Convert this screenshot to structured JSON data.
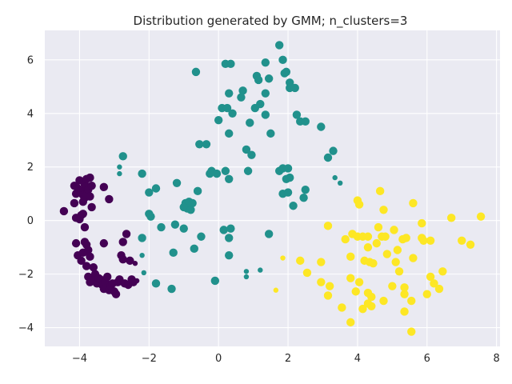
{
  "chart_data": {
    "type": "scatter",
    "title": "Distribution generated by GMM; n_clusters=3",
    "xlabel": "",
    "ylabel": "",
    "xlim": [
      -5.0,
      8.1
    ],
    "ylim": [
      -4.7,
      7.1
    ],
    "x_ticks": [
      -4,
      -2,
      0,
      2,
      4,
      6,
      8
    ],
    "y_ticks": [
      -4,
      -2,
      0,
      2,
      4,
      6
    ],
    "x_tick_labels": [
      "−4",
      "−2",
      "0",
      "2",
      "4",
      "6",
      "8"
    ],
    "y_tick_labels": [
      "−4",
      "−2",
      "0",
      "2",
      "4",
      "6"
    ],
    "grid": true,
    "background": "#eaeaf2",
    "grid_color": "#ffffff",
    "series": [
      {
        "color": "#440154",
        "points": [
          [
            -4.45,
            0.35,
            1
          ],
          [
            -4.15,
            1.3,
            1
          ],
          [
            -4.1,
            1.0,
            1
          ],
          [
            -4.05,
            1.2,
            1
          ],
          [
            -4.0,
            1.5,
            1
          ],
          [
            -3.95,
            1.1,
            1
          ],
          [
            -3.9,
            0.95,
            1
          ],
          [
            -3.85,
            1.35,
            1
          ],
          [
            -3.82,
            1.25,
            1
          ],
          [
            -3.8,
            1.55,
            1
          ],
          [
            -3.78,
            1.0,
            1
          ],
          [
            -3.75,
            1.15,
            1
          ],
          [
            -3.7,
            1.6,
            1
          ],
          [
            -3.65,
            1.3,
            1
          ],
          [
            -3.85,
            0.85,
            1
          ],
          [
            -3.9,
            0.7,
            1
          ],
          [
            -3.7,
            0.9,
            1
          ],
          [
            -3.65,
            0.5,
            1
          ],
          [
            -4.15,
            0.65,
            1
          ],
          [
            -4.1,
            0.1,
            1
          ],
          [
            -4.0,
            0.05,
            1
          ],
          [
            -3.95,
            0.2,
            1
          ],
          [
            -3.9,
            0.25,
            1
          ],
          [
            -3.85,
            -0.25,
            1
          ],
          [
            -3.3,
            1.25,
            1
          ],
          [
            -3.15,
            0.8,
            1
          ],
          [
            -4.1,
            -0.85,
            1
          ],
          [
            -4.05,
            -1.3,
            1
          ],
          [
            -3.95,
            -1.5,
            1
          ],
          [
            -3.9,
            -1.2,
            1
          ],
          [
            -3.85,
            -0.8,
            1
          ],
          [
            -3.8,
            -0.9,
            1
          ],
          [
            -3.75,
            -1.1,
            1
          ],
          [
            -3.7,
            -1.35,
            1
          ],
          [
            -3.8,
            -1.7,
            1
          ],
          [
            -3.75,
            -2.1,
            1
          ],
          [
            -3.7,
            -2.3,
            1
          ],
          [
            -3.65,
            -2.25,
            1
          ],
          [
            -3.6,
            -1.75,
            1
          ],
          [
            -3.55,
            -2.0,
            1
          ],
          [
            -3.5,
            -2.35,
            1
          ],
          [
            -3.45,
            -2.15,
            1
          ],
          [
            -3.4,
            -2.2,
            1
          ],
          [
            -3.35,
            -2.4,
            1
          ],
          [
            -3.3,
            -2.55,
            1
          ],
          [
            -3.25,
            -2.3,
            1
          ],
          [
            -3.2,
            -2.1,
            1
          ],
          [
            -3.15,
            -2.6,
            1
          ],
          [
            -3.1,
            -2.45,
            1
          ],
          [
            -3.05,
            -2.35,
            1
          ],
          [
            -3.0,
            -2.65,
            1
          ],
          [
            -2.95,
            -2.75,
            1
          ],
          [
            -2.9,
            -2.3,
            1
          ],
          [
            -2.85,
            -2.2,
            1
          ],
          [
            -2.8,
            -1.3,
            1
          ],
          [
            -2.75,
            -1.45,
            1
          ],
          [
            -2.7,
            -2.35,
            1
          ],
          [
            -2.6,
            -2.4,
            1
          ],
          [
            -2.55,
            -1.5,
            1
          ],
          [
            -2.5,
            -2.2,
            1
          ],
          [
            -2.45,
            -2.3,
            1
          ],
          [
            -3.3,
            -0.85,
            1
          ],
          [
            -2.75,
            -0.8,
            1
          ],
          [
            -2.65,
            -0.5,
            1
          ],
          [
            -2.4,
            -1.6,
            0
          ],
          [
            -2.35,
            -2.25,
            0
          ]
        ]
      },
      {
        "color": "#21918c",
        "points": [
          [
            1.75,
            6.55,
            1
          ],
          [
            1.85,
            6.0,
            1
          ],
          [
            1.9,
            5.5,
            1
          ],
          [
            1.95,
            5.55,
            1
          ],
          [
            2.05,
            5.15,
            1
          ],
          [
            2.05,
            4.95,
            1
          ],
          [
            2.2,
            4.95,
            1
          ],
          [
            0.2,
            5.85,
            1
          ],
          [
            0.35,
            5.85,
            1
          ],
          [
            1.35,
            5.9,
            1
          ],
          [
            1.1,
            5.4,
            1
          ],
          [
            1.15,
            5.25,
            1
          ],
          [
            1.45,
            5.3,
            1
          ],
          [
            -0.65,
            5.55,
            1
          ],
          [
            0.7,
            4.85,
            1
          ],
          [
            0.3,
            4.75,
            1
          ],
          [
            0.65,
            4.6,
            1
          ],
          [
            1.35,
            4.75,
            1
          ],
          [
            0.1,
            4.2,
            1
          ],
          [
            0.25,
            4.2,
            1
          ],
          [
            1.05,
            4.2,
            1
          ],
          [
            1.2,
            4.35,
            1
          ],
          [
            0.0,
            3.75,
            1
          ],
          [
            0.4,
            4.0,
            1
          ],
          [
            0.9,
            3.65,
            1
          ],
          [
            1.35,
            3.95,
            1
          ],
          [
            2.25,
            3.95,
            1
          ],
          [
            2.35,
            3.7,
            1
          ],
          [
            2.5,
            3.7,
            1
          ],
          [
            2.95,
            3.5,
            1
          ],
          [
            1.5,
            3.25,
            1
          ],
          [
            0.3,
            3.25,
            1
          ],
          [
            -0.55,
            2.85,
            1
          ],
          [
            -0.35,
            2.85,
            1
          ],
          [
            0.8,
            2.65,
            1
          ],
          [
            0.95,
            2.45,
            1
          ],
          [
            3.15,
            2.35,
            1
          ],
          [
            3.3,
            2.6,
            1
          ],
          [
            -2.75,
            2.4,
            1
          ],
          [
            -2.85,
            2.0,
            0
          ],
          [
            -2.85,
            1.75,
            0
          ],
          [
            1.75,
            1.85,
            1
          ],
          [
            1.85,
            1.95,
            1
          ],
          [
            2.0,
            1.95,
            1
          ],
          [
            0.85,
            1.85,
            1
          ],
          [
            0.2,
            1.85,
            1
          ],
          [
            -0.2,
            1.85,
            1
          ],
          [
            -0.05,
            1.75,
            1
          ],
          [
            -0.25,
            1.75,
            1
          ],
          [
            -2.2,
            1.75,
            1
          ],
          [
            3.35,
            1.6,
            0
          ],
          [
            0.3,
            1.55,
            1
          ],
          [
            1.95,
            1.55,
            1
          ],
          [
            2.05,
            1.6,
            1
          ],
          [
            3.5,
            1.4,
            0
          ],
          [
            -1.2,
            1.4,
            1
          ],
          [
            -1.8,
            1.2,
            1
          ],
          [
            -2.0,
            1.05,
            1
          ],
          [
            -0.6,
            1.1,
            1
          ],
          [
            1.85,
            1.0,
            1
          ],
          [
            2.0,
            1.05,
            1
          ],
          [
            2.5,
            1.15,
            1
          ],
          [
            2.45,
            0.85,
            1
          ],
          [
            -0.95,
            0.65,
            1
          ],
          [
            -0.85,
            0.7,
            1
          ],
          [
            -0.75,
            0.65,
            1
          ],
          [
            -0.9,
            0.45,
            1
          ],
          [
            -1.0,
            0.5,
            1
          ],
          [
            -0.8,
            0.4,
            1
          ],
          [
            2.15,
            0.55,
            1
          ],
          [
            -2.0,
            0.25,
            1
          ],
          [
            -1.95,
            0.15,
            1
          ],
          [
            -1.65,
            -0.25,
            1
          ],
          [
            -1.25,
            -0.15,
            1
          ],
          [
            -1.0,
            -0.3,
            1
          ],
          [
            0.15,
            -0.35,
            1
          ],
          [
            0.35,
            -0.3,
            1
          ],
          [
            1.45,
            -0.5,
            1
          ],
          [
            -2.2,
            -0.65,
            1
          ],
          [
            -0.5,
            -0.6,
            1
          ],
          [
            0.3,
            -0.65,
            1
          ],
          [
            -0.7,
            -1.05,
            1
          ],
          [
            -1.3,
            -1.2,
            1
          ],
          [
            0.3,
            -1.3,
            1
          ],
          [
            -2.2,
            -1.3,
            0
          ],
          [
            1.2,
            -1.85,
            0
          ],
          [
            -2.15,
            -1.95,
            0
          ],
          [
            0.8,
            -1.9,
            0
          ],
          [
            0.8,
            -2.1,
            0
          ],
          [
            -0.1,
            -2.25,
            1
          ],
          [
            -1.8,
            -2.35,
            1
          ],
          [
            -1.35,
            -2.55,
            1
          ]
        ]
      },
      {
        "color": "#fde725",
        "points": [
          [
            4.65,
            1.1,
            1
          ],
          [
            5.6,
            0.65,
            1
          ],
          [
            4.0,
            0.75,
            1
          ],
          [
            4.05,
            0.6,
            1
          ],
          [
            4.75,
            0.4,
            1
          ],
          [
            6.7,
            0.1,
            1
          ],
          [
            7.55,
            0.15,
            1
          ],
          [
            5.85,
            -0.1,
            1
          ],
          [
            3.15,
            -0.2,
            1
          ],
          [
            4.6,
            -0.25,
            1
          ],
          [
            5.05,
            -0.35,
            1
          ],
          [
            3.85,
            -0.5,
            1
          ],
          [
            4.0,
            -0.6,
            1
          ],
          [
            4.15,
            -0.6,
            1
          ],
          [
            4.3,
            -0.6,
            1
          ],
          [
            4.7,
            -0.6,
            1
          ],
          [
            4.8,
            -0.6,
            1
          ],
          [
            3.65,
            -0.7,
            1
          ],
          [
            5.3,
            -0.7,
            1
          ],
          [
            5.4,
            -0.65,
            1
          ],
          [
            5.85,
            -0.65,
            1
          ],
          [
            5.9,
            -0.75,
            1
          ],
          [
            6.1,
            -0.75,
            1
          ],
          [
            7.0,
            -0.75,
            1
          ],
          [
            7.25,
            -0.9,
            1
          ],
          [
            4.3,
            -1.0,
            1
          ],
          [
            4.55,
            -0.85,
            1
          ],
          [
            5.15,
            -1.1,
            1
          ],
          [
            4.85,
            -1.25,
            1
          ],
          [
            3.8,
            -1.35,
            1
          ],
          [
            5.6,
            -1.4,
            1
          ],
          [
            2.35,
            -1.5,
            1
          ],
          [
            4.2,
            -1.5,
            1
          ],
          [
            4.35,
            -1.55,
            1
          ],
          [
            4.45,
            -1.6,
            1
          ],
          [
            5.1,
            -1.55,
            1
          ],
          [
            2.95,
            -1.55,
            1
          ],
          [
            2.55,
            -1.95,
            1
          ],
          [
            5.2,
            -1.9,
            1
          ],
          [
            6.45,
            -1.9,
            1
          ],
          [
            3.8,
            -2.15,
            1
          ],
          [
            6.1,
            -2.1,
            1
          ],
          [
            2.95,
            -2.3,
            1
          ],
          [
            4.05,
            -2.3,
            1
          ],
          [
            6.2,
            -2.35,
            1
          ],
          [
            3.2,
            -2.45,
            1
          ],
          [
            5.0,
            -2.45,
            1
          ],
          [
            5.35,
            -2.5,
            1
          ],
          [
            6.35,
            -2.55,
            1
          ],
          [
            1.65,
            -2.6,
            0
          ],
          [
            3.95,
            -2.65,
            1
          ],
          [
            4.3,
            -2.7,
            1
          ],
          [
            5.35,
            -2.75,
            1
          ],
          [
            6.0,
            -2.75,
            1
          ],
          [
            3.15,
            -2.8,
            1
          ],
          [
            4.4,
            -2.85,
            1
          ],
          [
            4.75,
            -3.0,
            1
          ],
          [
            5.55,
            -3.0,
            1
          ],
          [
            4.3,
            -3.1,
            1
          ],
          [
            3.55,
            -3.25,
            1
          ],
          [
            4.4,
            -3.2,
            1
          ],
          [
            4.15,
            -3.3,
            1
          ],
          [
            5.35,
            -3.4,
            1
          ],
          [
            3.8,
            -3.8,
            1
          ],
          [
            5.55,
            -4.15,
            1
          ],
          [
            1.85,
            -1.4,
            0
          ]
        ]
      }
    ]
  }
}
